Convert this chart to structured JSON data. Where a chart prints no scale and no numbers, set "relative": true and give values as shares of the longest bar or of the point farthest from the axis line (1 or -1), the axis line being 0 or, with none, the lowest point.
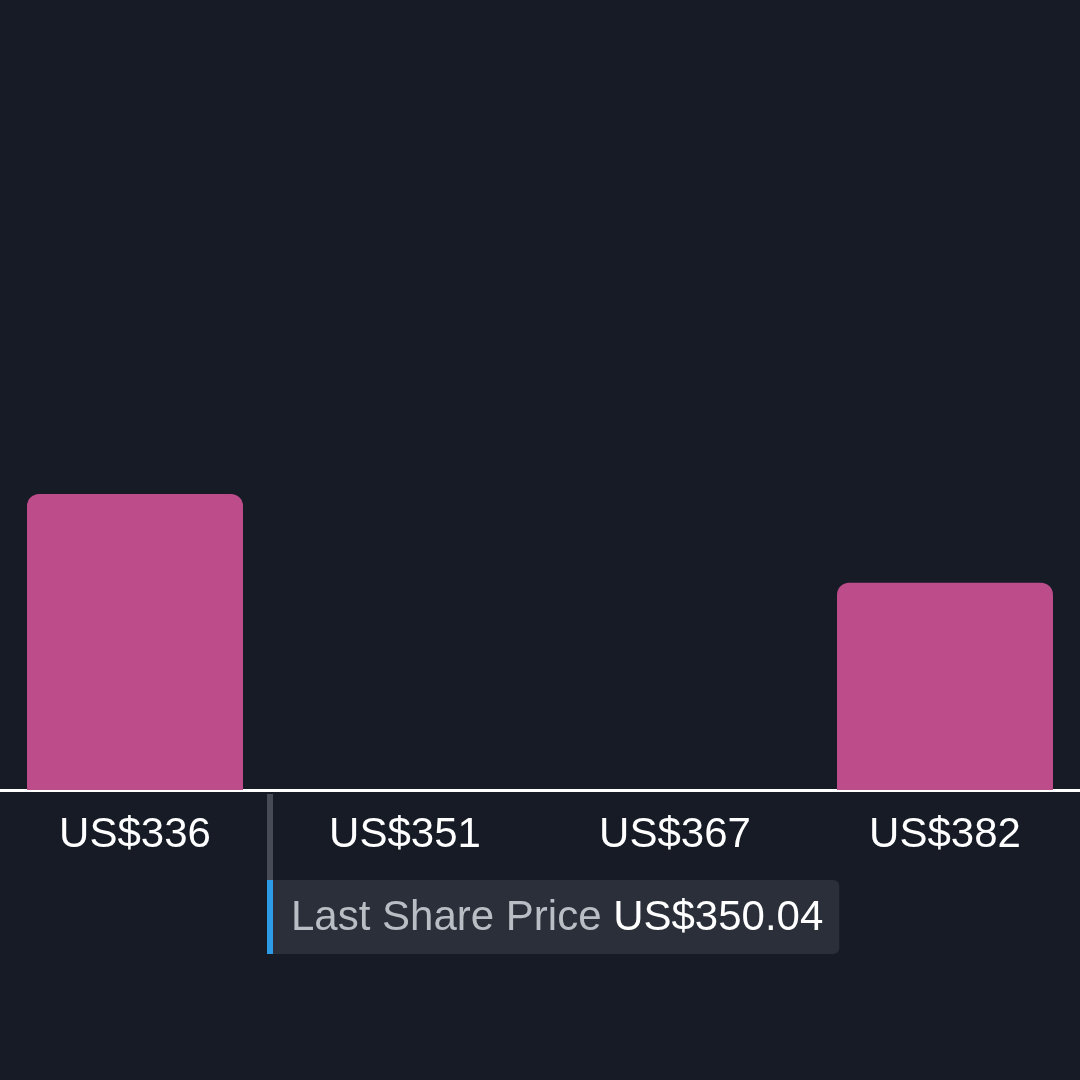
{
  "chart_data": {
    "type": "bar",
    "relative": true,
    "categories": [
      "US$336",
      "US$351",
      "US$367",
      "US$382"
    ],
    "values": [
      1,
      0,
      0,
      0.7
    ],
    "color": "#bc4c8a",
    "annotations": [
      "Last Share Price US$350.04"
    ]
  }
}
